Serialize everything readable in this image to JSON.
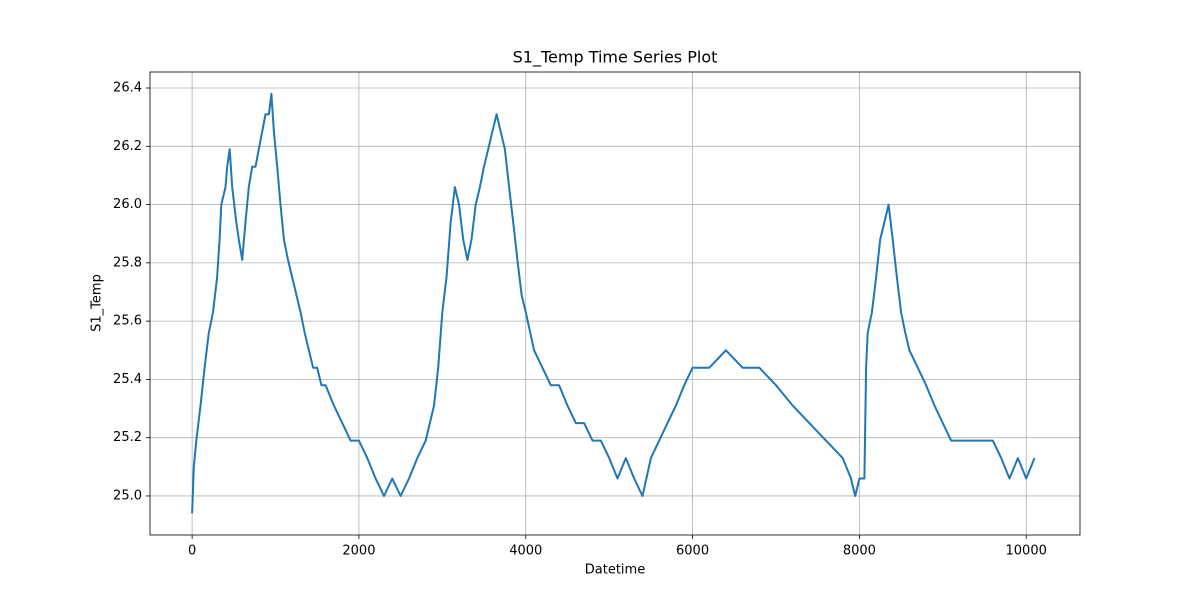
{
  "chart_data": {
    "type": "line",
    "title": "S1_Temp Time Series Plot",
    "xlabel": "Datetime",
    "ylabel": "S1_Temp",
    "x": [
      0,
      20,
      50,
      100,
      150,
      200,
      250,
      300,
      330,
      350,
      400,
      420,
      450,
      480,
      530,
      560,
      600,
      640,
      680,
      720,
      760,
      800,
      840,
      880,
      920,
      950,
      980,
      1020,
      1060,
      1100,
      1150,
      1200,
      1250,
      1300,
      1350,
      1400,
      1450,
      1500,
      1550,
      1600,
      1700,
      1800,
      1900,
      2000,
      2100,
      2200,
      2300,
      2400,
      2500,
      2600,
      2700,
      2800,
      2900,
      2950,
      3000,
      3050,
      3100,
      3150,
      3200,
      3250,
      3300,
      3350,
      3400,
      3450,
      3500,
      3550,
      3600,
      3650,
      3700,
      3750,
      3800,
      3850,
      3900,
      3950,
      4000,
      4100,
      4200,
      4300,
      4400,
      4500,
      4600,
      4700,
      4800,
      4900,
      5000,
      5100,
      5200,
      5300,
      5400,
      5500,
      5600,
      5700,
      5800,
      5900,
      6000,
      6200,
      6400,
      6600,
      6800,
      7000,
      7200,
      7400,
      7600,
      7800,
      7900,
      7950,
      8000,
      8060,
      8080,
      8100,
      8150,
      8200,
      8250,
      8300,
      8350,
      8400,
      8450,
      8500,
      8550,
      8600,
      8700,
      8800,
      8900,
      9000,
      9100,
      9200,
      9400,
      9600,
      9700,
      9800,
      9900,
      10000,
      10100
    ],
    "values": [
      24.94,
      25.1,
      25.19,
      25.31,
      25.44,
      25.56,
      25.63,
      25.75,
      25.88,
      26.0,
      26.06,
      26.13,
      26.19,
      26.06,
      25.94,
      25.88,
      25.81,
      25.94,
      26.06,
      26.13,
      26.13,
      26.19,
      26.25,
      26.31,
      26.31,
      26.38,
      26.25,
      26.13,
      26.0,
      25.88,
      25.81,
      25.75,
      25.69,
      25.63,
      25.56,
      25.5,
      25.44,
      25.44,
      25.38,
      25.38,
      25.31,
      25.25,
      25.19,
      25.19,
      25.13,
      25.06,
      25.0,
      25.06,
      25.0,
      25.06,
      25.13,
      25.19,
      25.31,
      25.44,
      25.63,
      25.75,
      25.94,
      26.06,
      26.0,
      25.88,
      25.81,
      25.88,
      26.0,
      26.06,
      26.13,
      26.19,
      26.25,
      26.31,
      26.25,
      26.19,
      26.06,
      25.94,
      25.81,
      25.69,
      25.63,
      25.5,
      25.44,
      25.38,
      25.38,
      25.31,
      25.25,
      25.25,
      25.19,
      25.19,
      25.13,
      25.06,
      25.13,
      25.06,
      25.0,
      25.13,
      25.19,
      25.25,
      25.31,
      25.38,
      25.44,
      25.44,
      25.5,
      25.44,
      25.44,
      25.38,
      25.31,
      25.25,
      25.19,
      25.13,
      25.06,
      25.0,
      25.06,
      25.06,
      25.44,
      25.56,
      25.63,
      25.75,
      25.88,
      25.94,
      26.0,
      25.88,
      25.75,
      25.63,
      25.56,
      25.5,
      25.44,
      25.38,
      25.31,
      25.25,
      25.19,
      25.19,
      25.19,
      25.19,
      25.13,
      25.06,
      25.13,
      25.06,
      25.13
    ],
    "color": "#1f77b4",
    "xlim": [
      -505,
      10645
    ],
    "xticks": [
      0,
      2000,
      4000,
      6000,
      8000,
      10000
    ],
    "ylim": [
      24.866,
      26.455
    ],
    "yticks": [
      {
        "value": 25.0,
        "label": "25.0"
      },
      25.2,
      25.4,
      25.6,
      25.8,
      {
        "value": 26.0,
        "label": "26.0"
      },
      26.2,
      26.4
    ],
    "grid": true
  }
}
